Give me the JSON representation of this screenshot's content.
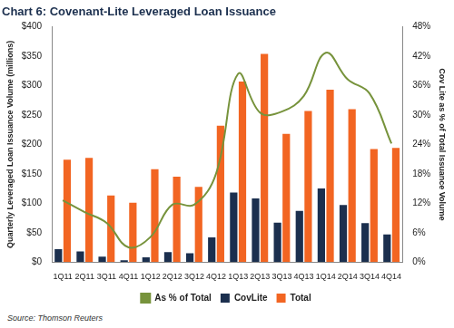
{
  "chart_data": {
    "type": "bar",
    "title": "Chart 6: Covenant-Lite Leveraged Loan Issuance",
    "source": "Source: Thomson Reuters",
    "y_label": "Quarterly Leveraged Loan Issuance Volume (millions)",
    "y2_label": "Cov Lite as % of Total Issuance Volume",
    "categories": [
      "1Q11",
      "2Q11",
      "3Q11",
      "4Q11",
      "1Q12",
      "2Q12",
      "3Q12",
      "4Q12",
      "1Q13",
      "2Q13",
      "3Q13",
      "4Q13",
      "1Q14",
      "2Q14",
      "3Q14",
      "4Q14"
    ],
    "series": [
      {
        "name": "CovLite",
        "color": "#1b2f4e",
        "values": [
          22,
          18,
          9,
          3,
          8,
          17,
          15,
          42,
          118,
          108,
          67,
          87,
          125,
          97,
          66,
          47
        ]
      },
      {
        "name": "Total",
        "color": "#f26522",
        "values": [
          174,
          177,
          113,
          101,
          158,
          145,
          128,
          232,
          307,
          354,
          218,
          257,
          293,
          260,
          192,
          194
        ]
      },
      {
        "name": "As % of Total",
        "type": "line",
        "axis": "y2",
        "color": "#77933c",
        "marker": "none",
        "line_style": "solid",
        "values": [
          12.6,
          10.2,
          8.0,
          3.0,
          5.1,
          11.7,
          11.7,
          18.1,
          38.4,
          30.5,
          30.7,
          33.9,
          42.7,
          37.3,
          34.4,
          24.2
        ]
      }
    ],
    "ylim": [
      0,
      400
    ],
    "yticks": [
      {
        "value": 0,
        "label": "$0"
      },
      {
        "value": 50,
        "label": "$50"
      },
      {
        "value": 100,
        "label": "$100"
      },
      {
        "value": 150,
        "label": "$150"
      },
      {
        "value": 200,
        "label": "$200"
      },
      {
        "value": 250,
        "label": "$250"
      },
      {
        "value": 300,
        "label": "$300"
      },
      {
        "value": 350,
        "label": "$350"
      },
      {
        "value": 400,
        "label": "$400"
      }
    ],
    "y2lim": [
      0,
      48
    ],
    "y2ticks": [
      {
        "value": 0,
        "label": "0%"
      },
      {
        "value": 6,
        "label": "6%"
      },
      {
        "value": 12,
        "label": "12%"
      },
      {
        "value": 18,
        "label": "18%"
      },
      {
        "value": 24,
        "label": "24%"
      },
      {
        "value": 30,
        "label": "30%"
      },
      {
        "value": 36,
        "label": "36%"
      },
      {
        "value": 42,
        "label": "42%"
      },
      {
        "value": 48,
        "label": "48%"
      }
    ],
    "grid": false,
    "legend": "bottom"
  }
}
